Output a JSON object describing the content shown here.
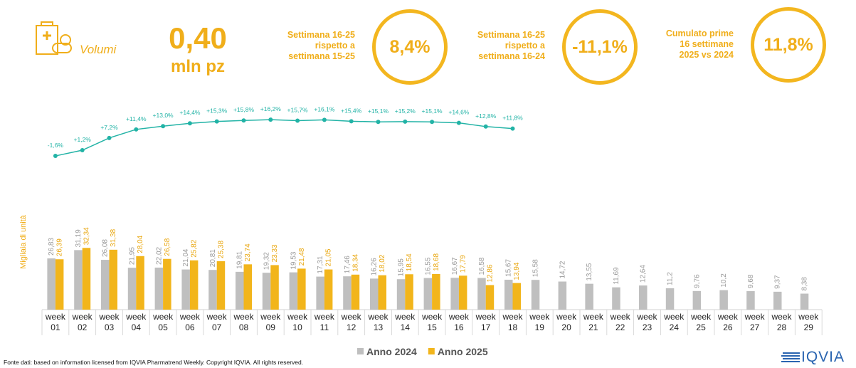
{
  "header": {
    "label": "Volumi",
    "value": "0,40",
    "unit": "mln pz"
  },
  "kpis": [
    {
      "label_lines": [
        "Settimana 16-25",
        "rispetto a",
        "settimana 15-25"
      ],
      "value": "8,4%"
    },
    {
      "label_lines": [
        "Settimana 16-25",
        "rispetto a",
        "settimana 16-24"
      ],
      "value": "-11,1%"
    },
    {
      "label_lines": [
        "Cumulato prime",
        "16 settimane",
        "2025 vs 2024"
      ],
      "value": "11,8%"
    }
  ],
  "chart_data": {
    "type": "bar",
    "ylabel": "Migliaia di unità",
    "categories": [
      "week 01",
      "week 02",
      "week 03",
      "week 04",
      "week 05",
      "week 06",
      "week 07",
      "week 08",
      "week 09",
      "week 10",
      "week 11",
      "week 12",
      "week 13",
      "week 14",
      "week 15",
      "week 16",
      "week 17",
      "week 18",
      "week 19",
      "week 20",
      "week 21",
      "week 22",
      "week 23",
      "week 24",
      "week 25",
      "week 26",
      "week 27",
      "week 28",
      "week 29"
    ],
    "ylim": [
      0,
      110
    ],
    "y2lim": [
      -77,
      26
    ],
    "series": [
      {
        "name": "Anno 2024",
        "color": "#bfbfbf",
        "values": [
          26.83,
          31.19,
          26.08,
          21.95,
          22.02,
          21.04,
          20.81,
          19.81,
          19.32,
          19.53,
          17.31,
          17.46,
          16.26,
          15.95,
          16.55,
          16.67,
          16.58,
          15.67,
          15.58,
          14.72,
          13.55,
          11.69,
          12.64,
          11.2,
          9.76,
          10.2,
          9.68,
          9.37,
          8.38
        ],
        "value_labels": [
          "26,83",
          "31,19",
          "26,08",
          "21,95",
          "22,02",
          "21,04",
          "20,81",
          "19,81",
          "19,32",
          "19,53",
          "17,31",
          "17,46",
          "16,26",
          "15,95",
          "16,55",
          "16,67",
          "16,58",
          "15,67",
          "15,58",
          "14,72",
          "13,55",
          "11,69",
          "12,64",
          "11,2",
          "9,76",
          "10,2",
          "9,68",
          "9,37",
          "8,38"
        ]
      },
      {
        "name": "Anno 2025",
        "color": "#f2b51b",
        "values": [
          26.39,
          32.34,
          31.38,
          28.04,
          26.58,
          25.82,
          25.38,
          23.74,
          23.33,
          21.48,
          21.05,
          18.34,
          18.02,
          18.54,
          18.68,
          17.79,
          12.86,
          13.94,
          null,
          null,
          null,
          null,
          null,
          null,
          null,
          null,
          null,
          null,
          null
        ],
        "value_labels": [
          "26,39",
          "32,34",
          "31,38",
          "28,04",
          "26,58",
          "25,82",
          "25,38",
          "23,74",
          "23,33",
          "21,48",
          "21,05",
          "18,34",
          "18,02",
          "18,54",
          "18,68",
          "17,79",
          "12,86",
          "13,94",
          null,
          null,
          null,
          null,
          null,
          null,
          null,
          null,
          null,
          null,
          null
        ]
      },
      {
        "type": "line",
        "axis": "y2",
        "color": "#22b3a6",
        "values": [
          -1.6,
          1.2,
          7.2,
          11.4,
          13.0,
          14.4,
          15.3,
          15.8,
          16.2,
          15.7,
          16.1,
          15.4,
          15.1,
          15.2,
          15.1,
          14.6,
          12.8,
          11.8,
          null,
          null,
          null,
          null,
          null,
          null,
          null,
          null,
          null,
          null,
          null
        ],
        "value_labels": [
          "-1,6%",
          "+1,2%",
          "+7,2%",
          "+11,4%",
          "+13,0%",
          "+14,4%",
          "+15,3%",
          "+15,8%",
          "+16,2%",
          "+15,7%",
          "+16,1%",
          "+15,4%",
          "+15,1%",
          "+15,2%",
          "+15,1%",
          "+14,6%",
          "+12,8%",
          "+11,8%",
          null,
          null,
          null,
          null,
          null,
          null,
          null,
          null,
          null,
          null,
          null
        ]
      }
    ]
  },
  "footer": "Fonte dati: based on information licensed from IQVIA Pharmatrend Weekly. Copyright IQVIA. All rights reserved.",
  "logo": "IQVIA"
}
